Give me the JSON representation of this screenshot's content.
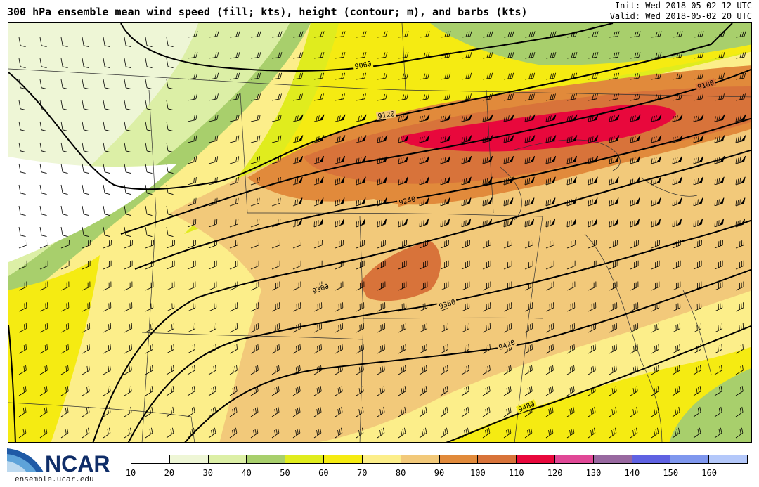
{
  "header": {
    "title": "300 hPa ensemble mean wind speed (fill; kts), height (contour; m), and barbs (kts)",
    "init": "Init: Wed 2018-05-02 12 UTC",
    "valid": "Valid: Wed 2018-05-02 20 UTC"
  },
  "contours": [
    {
      "label": "9060"
    },
    {
      "label": "9120"
    },
    {
      "label": "9180"
    },
    {
      "label": "9240"
    },
    {
      "label": "9300"
    },
    {
      "label": "9360"
    },
    {
      "label": "9420"
    },
    {
      "label": "9480"
    }
  ],
  "colorbar": {
    "ticks": [
      "10",
      "20",
      "30",
      "40",
      "50",
      "60",
      "70",
      "80",
      "90",
      "100",
      "110",
      "120",
      "130",
      "140",
      "150",
      "160"
    ],
    "colors": [
      "#ffffff",
      "#eef6d6",
      "#dcefa6",
      "#a8cf6c",
      "#e0ec1e",
      "#f5eb12",
      "#fcee8a",
      "#f2c97a",
      "#e18a3b",
      "#d8733a",
      "#e8083c",
      "#e04896",
      "#9868a0",
      "#5f62e2",
      "#7f97ee",
      "#b4c8fa"
    ]
  },
  "logo": {
    "text": "NCAR",
    "url": "ensemble.ucar.edu"
  }
}
